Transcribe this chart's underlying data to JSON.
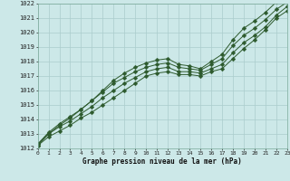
{
  "xlabel": "Graphe pression niveau de la mer (hPa)",
  "ylim": [
    1012,
    1022
  ],
  "xlim": [
    0,
    23
  ],
  "yticks": [
    1012,
    1013,
    1014,
    1015,
    1016,
    1017,
    1018,
    1019,
    1020,
    1021,
    1022
  ],
  "xticks": [
    0,
    1,
    2,
    3,
    4,
    5,
    6,
    7,
    8,
    9,
    10,
    11,
    12,
    13,
    14,
    15,
    16,
    17,
    18,
    19,
    20,
    21,
    22,
    23
  ],
  "background_color": "#cce8e8",
  "grid_color": "#aacccc",
  "line_color": "#2d5a2d",
  "marker_size": 2.5,
  "lines": [
    [
      1012.2,
      1012.8,
      1013.2,
      1013.6,
      1014.1,
      1014.5,
      1015.0,
      1015.5,
      1016.0,
      1016.5,
      1017.0,
      1017.2,
      1017.3,
      1017.1,
      1017.1,
      1017.0,
      1017.3,
      1017.5,
      1018.2,
      1018.9,
      1019.5,
      1020.2,
      1021.0,
      1021.5
    ],
    [
      1012.3,
      1013.0,
      1013.5,
      1013.9,
      1014.4,
      1014.9,
      1015.5,
      1016.0,
      1016.5,
      1016.9,
      1017.3,
      1017.5,
      1017.6,
      1017.3,
      1017.3,
      1017.2,
      1017.5,
      1017.8,
      1018.6,
      1019.3,
      1019.8,
      1020.4,
      1021.2,
      1021.8
    ],
    [
      1012.3,
      1013.1,
      1013.7,
      1014.2,
      1014.7,
      1015.3,
      1015.9,
      1016.5,
      1016.9,
      1017.3,
      1017.6,
      1017.8,
      1017.9,
      1017.6,
      1017.5,
      1017.4,
      1017.8,
      1018.2,
      1019.1,
      1019.8,
      1020.3,
      1020.9,
      1021.6,
      1022.1
    ],
    [
      1012.2,
      1013.0,
      1013.6,
      1014.1,
      1014.7,
      1015.3,
      1016.0,
      1016.7,
      1017.2,
      1017.6,
      1017.9,
      1018.1,
      1018.2,
      1017.8,
      1017.7,
      1017.5,
      1018.0,
      1018.5,
      1019.5,
      1020.3,
      1020.8,
      1021.4,
      1022.1,
      1022.5
    ]
  ]
}
